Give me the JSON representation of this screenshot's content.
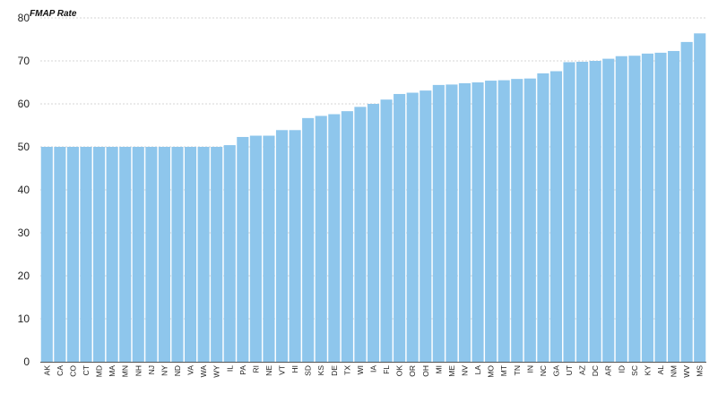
{
  "chart_data": {
    "type": "bar",
    "title": "",
    "ylabel": "FMAP Rate",
    "xlabel": "",
    "ylim": [
      0,
      80
    ],
    "yticks": [
      0,
      10,
      20,
      30,
      40,
      50,
      60,
      70,
      80
    ],
    "grid": true,
    "bar_color": "#8ec6ec",
    "categories": [
      "AK",
      "CA",
      "CO",
      "CT",
      "MD",
      "MA",
      "MN",
      "NH",
      "NJ",
      "NY",
      "ND",
      "VA",
      "WA",
      "WY",
      "IL",
      "PA",
      "RI",
      "NE",
      "VT",
      "HI",
      "SD",
      "KS",
      "DE",
      "TX",
      "WI",
      "IA",
      "FL",
      "OK",
      "OR",
      "OH",
      "MI",
      "ME",
      "NV",
      "LA",
      "MO",
      "MT",
      "TN",
      "IN",
      "NC",
      "GA",
      "UT",
      "AZ",
      "DC",
      "AR",
      "ID",
      "SC",
      "KY",
      "AL",
      "NM",
      "WV",
      "MS"
    ],
    "values": [
      50,
      50,
      50,
      50,
      50,
      50,
      50,
      50,
      50,
      50,
      50,
      50,
      50,
      50,
      50.4,
      52.3,
      52.6,
      52.6,
      53.9,
      53.9,
      56.7,
      57.2,
      57.6,
      58.3,
      59.3,
      60.0,
      61.0,
      62.3,
      62.6,
      63.1,
      64.4,
      64.5,
      64.8,
      65.0,
      65.4,
      65.5,
      65.8,
      65.9,
      67.1,
      67.6,
      69.7,
      69.8,
      70.0,
      70.5,
      71.1,
      71.2,
      71.7,
      71.9,
      72.3,
      74.4,
      76.4
    ]
  }
}
